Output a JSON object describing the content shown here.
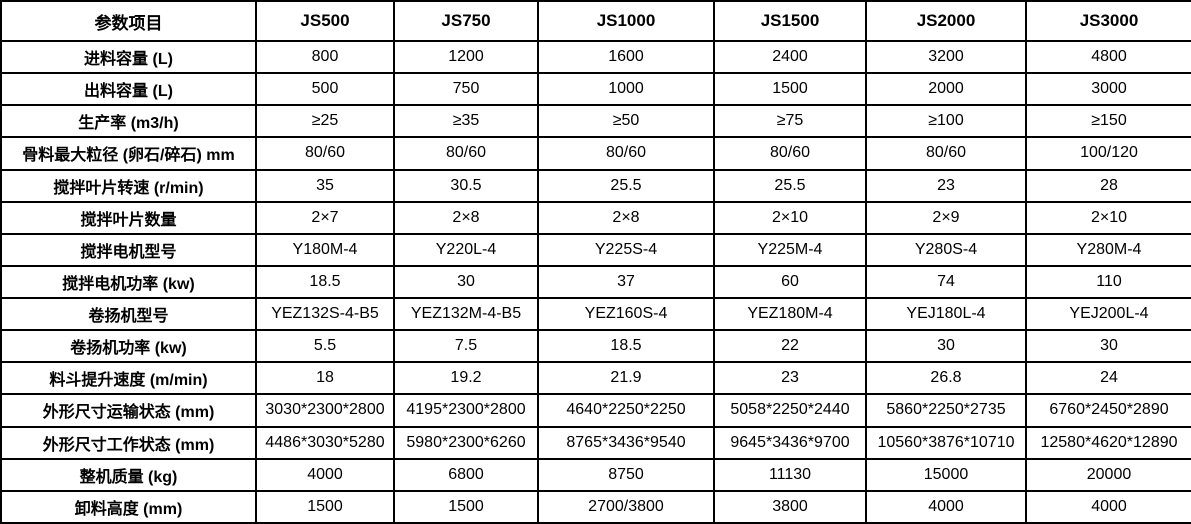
{
  "table": {
    "header": [
      "参数项目",
      "JS500",
      "JS750",
      "JS1000",
      "JS1500",
      "JS2000",
      "JS3000"
    ],
    "rows": [
      {
        "label": "进料容量 (L)",
        "values": [
          "800",
          "1200",
          "1600",
          "2400",
          "3200",
          "4800"
        ]
      },
      {
        "label": "出料容量 (L)",
        "values": [
          "500",
          "750",
          "1000",
          "1500",
          "2000",
          "3000"
        ]
      },
      {
        "label": "生产率 (m3/h)",
        "values": [
          "≥25",
          "≥35",
          "≥50",
          "≥75",
          "≥100",
          "≥150"
        ]
      },
      {
        "label": "骨料最大粒径 (卵石/碎石) mm",
        "values": [
          "80/60",
          "80/60",
          "80/60",
          "80/60",
          "80/60",
          "100/120"
        ]
      },
      {
        "label": "搅拌叶片转速 (r/min)",
        "values": [
          "35",
          "30.5",
          "25.5",
          "25.5",
          "23",
          "28"
        ]
      },
      {
        "label": "搅拌叶片数量",
        "values": [
          "2×7",
          "2×8",
          "2×8",
          "2×10",
          "2×9",
          "2×10"
        ]
      },
      {
        "label": "搅拌电机型号",
        "values": [
          "Y180M-4",
          "Y220L-4",
          "Y225S-4",
          "Y225M-4",
          "Y280S-4",
          "Y280M-4"
        ]
      },
      {
        "label": "搅拌电机功率 (kw)",
        "values": [
          "18.5",
          "30",
          "37",
          "60",
          "74",
          "110"
        ]
      },
      {
        "label": "卷扬机型号",
        "values": [
          "YEZ132S-4-B5",
          "YEZ132M-4-B5",
          "YEZ160S-4",
          "YEZ180M-4",
          "YEJ180L-4",
          "YEJ200L-4"
        ]
      },
      {
        "label": "卷扬机功率 (kw)",
        "values": [
          "5.5",
          "7.5",
          "18.5",
          "22",
          "30",
          "30"
        ]
      },
      {
        "label": "料斗提升速度 (m/min)",
        "values": [
          "18",
          "19.2",
          "21.9",
          "23",
          "26.8",
          "24"
        ]
      },
      {
        "label": "外形尺寸运输状态 (mm)",
        "values": [
          "3030*2300*2800",
          "4195*2300*2800",
          "4640*2250*2250",
          "5058*2250*2440",
          "5860*2250*2735",
          "6760*2450*2890"
        ]
      },
      {
        "label": "外形尺寸工作状态 (mm)",
        "values": [
          "4486*3030*5280",
          "5980*2300*6260",
          "8765*3436*9540",
          "9645*3436*9700",
          "10560*3876*10710",
          "12580*4620*12890"
        ]
      },
      {
        "label": "整机质量 (kg)",
        "values": [
          "4000",
          "6800",
          "8750",
          "11130",
          "15000",
          "20000"
        ]
      },
      {
        "label": "卸料高度 (mm)",
        "values": [
          "1500",
          "1500",
          "2700/3800",
          "3800",
          "4000",
          "4000"
        ]
      }
    ]
  },
  "colors": {
    "border": "#000000",
    "text": "#000000",
    "background": "#ffffff"
  }
}
